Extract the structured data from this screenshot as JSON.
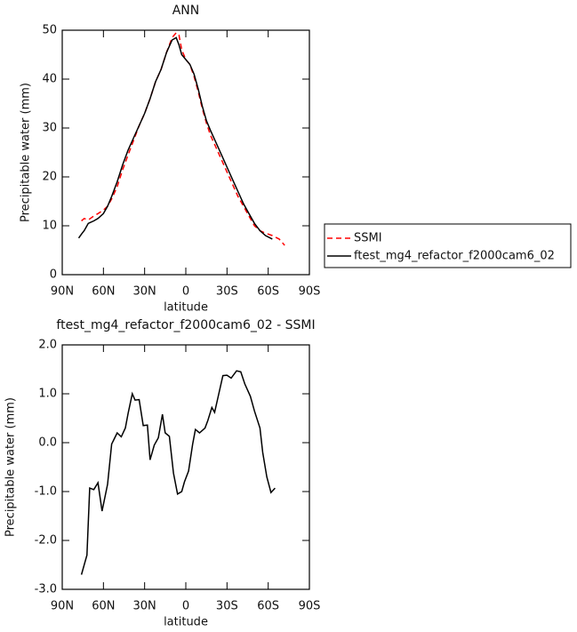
{
  "chart_data": [
    {
      "type": "line",
      "title": "ANN",
      "xlabel": "latitude",
      "ylabel": "Precipitable water (mm)",
      "x": [
        78,
        76,
        74,
        71,
        67,
        64,
        60,
        57,
        54,
        50,
        46,
        42,
        38,
        34,
        30,
        26,
        22,
        18,
        14,
        10,
        7,
        5,
        3,
        0,
        -3,
        -6,
        -9,
        -12,
        -15,
        -18,
        -22,
        -26,
        -30,
        -34,
        -38,
        -42,
        -46,
        -50,
        -54,
        -58,
        -63,
        -68,
        -72
      ],
      "series": [
        {
          "name": "SSMI",
          "color": "#ff0000",
          "dashed": true,
          "values": [
            null,
            11,
            11.5,
            11.2,
            12,
            12.5,
            13.2,
            14,
            15.5,
            18,
            21.5,
            24.5,
            27.5,
            30.5,
            33,
            36,
            39.5,
            42,
            45.5,
            48.5,
            49.5,
            49,
            46,
            44,
            43,
            40.5,
            37.5,
            34,
            31,
            28.5,
            26,
            23.5,
            21,
            18.5,
            16,
            14,
            12,
            10,
            9,
            8.5,
            8,
            7.3,
            6
          ]
        },
        {
          "name": "ftest_mg4_refactor_f2000cam6_02",
          "color": "#000000",
          "dashed": false,
          "values": [
            7.5,
            8.3,
            9,
            10.5,
            11,
            11.5,
            12.5,
            14,
            16,
            19,
            22.5,
            25.5,
            28,
            30.5,
            33,
            36,
            39.5,
            42,
            45.5,
            48,
            48.5,
            47,
            45,
            44,
            43,
            41,
            38,
            34.5,
            31.5,
            29.5,
            27,
            24.5,
            22,
            19.5,
            17,
            14.5,
            12.5,
            10.5,
            9,
            8,
            7.3,
            null,
            null
          ]
        }
      ],
      "xlim": [
        90,
        -90
      ],
      "xticks": [
        {
          "value": 90,
          "label": "90N"
        },
        {
          "value": 60,
          "label": "60N"
        },
        {
          "value": 30,
          "label": "30N"
        },
        0,
        {
          "value": -30,
          "label": "30S"
        },
        {
          "value": -60,
          "label": "60S"
        },
        {
          "value": -90,
          "label": "90S"
        }
      ],
      "ylim": [
        0,
        50
      ],
      "yticks": [
        0,
        10,
        20,
        30,
        40,
        50
      ],
      "legend": "right"
    },
    {
      "type": "line",
      "title": "ftest_mg4_refactor_f2000cam6_02 - SSMI",
      "xlabel": "latitude",
      "ylabel": "Precipitable water (mm)",
      "x": [
        76,
        72,
        70,
        67,
        64,
        61,
        57,
        54,
        50,
        47,
        44,
        42,
        39,
        37,
        34,
        31,
        28,
        26,
        23,
        20,
        17,
        15,
        12,
        9,
        6,
        3,
        1,
        -2,
        -5,
        -7,
        -10,
        -14,
        -16,
        -19,
        -21,
        -24,
        -27,
        -30,
        -33,
        -37,
        -40,
        -43,
        -47,
        -50,
        -54,
        -56,
        -59,
        -62,
        -65
      ],
      "color": "#000000",
      "values": [
        -2.7,
        -2.3,
        -0.93,
        -0.96,
        -0.82,
        -1.4,
        -0.85,
        -0.03,
        0.2,
        0.12,
        0.3,
        0.6,
        1.0,
        0.87,
        0.88,
        0.35,
        0.36,
        -0.35,
        -0.05,
        0.1,
        0.58,
        0.2,
        0.13,
        -0.62,
        -1.05,
        -1.0,
        -0.8,
        -0.58,
        -0.03,
        0.27,
        0.2,
        0.3,
        0.45,
        0.72,
        0.62,
        1.0,
        1.37,
        1.38,
        1.32,
        1.47,
        1.45,
        1.2,
        0.95,
        0.65,
        0.3,
        -0.2,
        -0.7,
        -1.02,
        -0.93
      ],
      "xlim": [
        90,
        -90
      ],
      "xticks": [
        {
          "value": 90,
          "label": "90N"
        },
        {
          "value": 60,
          "label": "60N"
        },
        {
          "value": 30,
          "label": "30N"
        },
        0,
        {
          "value": -30,
          "label": "30S"
        },
        {
          "value": -60,
          "label": "60S"
        },
        {
          "value": -90,
          "label": "90S"
        }
      ],
      "ylim": [
        -3,
        2
      ],
      "yticks": [
        {
          "value": 2,
          "label": "2.0"
        },
        {
          "value": 1,
          "label": "1.0"
        },
        {
          "value": 0,
          "label": "0.0"
        },
        {
          "value": -1,
          "label": "-1.0"
        },
        {
          "value": -2,
          "label": "-2.0"
        },
        {
          "value": -3,
          "label": "-3.0"
        }
      ]
    }
  ]
}
